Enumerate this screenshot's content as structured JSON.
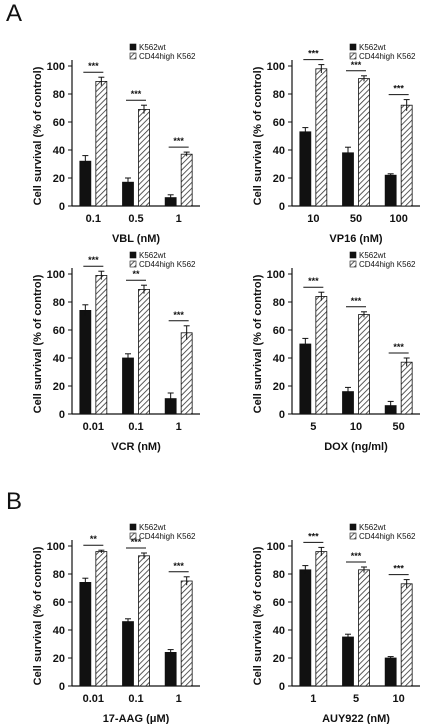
{
  "panel_labels": [
    "A",
    "B"
  ],
  "colors": {
    "wt": "#111111",
    "high_fill": "#ffffff",
    "hatch": "#333333",
    "axis": "#111111"
  },
  "chart_data": [
    {
      "type": "bar",
      "panel": "A",
      "categories": [
        "0.1",
        "0.5",
        "1"
      ],
      "xlabel": "VBL (nM)",
      "ylabel": "Cell survival (% of control)",
      "ylim": [
        0,
        100
      ],
      "yticks": [
        0,
        20,
        40,
        60,
        80,
        100
      ],
      "grid": false,
      "legend": "top-right",
      "series": [
        {
          "name": "K562wt",
          "values": [
            32,
            17,
            6
          ],
          "errors": [
            4,
            3,
            2
          ]
        },
        {
          "name": "CD44high K562",
          "values": [
            89,
            69,
            37
          ],
          "errors": [
            3,
            3,
            1.5
          ]
        }
      ],
      "significance": [
        "***",
        "***",
        "***"
      ]
    },
    {
      "type": "bar",
      "panel": "A",
      "categories": [
        "10",
        "50",
        "100"
      ],
      "xlabel": "VP16 (nM)",
      "ylabel": "Cell survival (% of control)",
      "ylim": [
        0,
        100
      ],
      "yticks": [
        0,
        20,
        40,
        60,
        80,
        100
      ],
      "grid": false,
      "legend": "top-right",
      "series": [
        {
          "name": "K562wt",
          "values": [
            53,
            38,
            22
          ],
          "errors": [
            3,
            4,
            1
          ]
        },
        {
          "name": "CD44high K562",
          "values": [
            98,
            91,
            72
          ],
          "errors": [
            3,
            2,
            4
          ]
        }
      ],
      "significance": [
        "***",
        "***",
        "***"
      ]
    },
    {
      "type": "bar",
      "panel": "A",
      "categories": [
        "0.01",
        "0.1",
        "1"
      ],
      "xlabel": "VCR (nM)",
      "ylabel": "Cell survival (% of control)",
      "ylim": [
        0,
        100
      ],
      "yticks": [
        0,
        20,
        40,
        60,
        80,
        100
      ],
      "grid": false,
      "legend": "top-right",
      "series": [
        {
          "name": "K562wt",
          "values": [
            74,
            40,
            11
          ],
          "errors": [
            4,
            3,
            4
          ]
        },
        {
          "name": "CD44high K562",
          "values": [
            99,
            89,
            58
          ],
          "errors": [
            3,
            3,
            5
          ]
        }
      ],
      "significance": [
        "***",
        "**",
        "***"
      ]
    },
    {
      "type": "bar",
      "panel": "A",
      "categories": [
        "5",
        "10",
        "50"
      ],
      "xlabel": "DOX (ng/ml)",
      "ylabel": "Cell survival (% of control)",
      "ylim": [
        0,
        100
      ],
      "yticks": [
        0,
        20,
        40,
        60,
        80,
        100
      ],
      "grid": false,
      "legend": "top-right",
      "series": [
        {
          "name": "K562wt",
          "values": [
            50,
            16,
            6
          ],
          "errors": [
            4,
            3,
            3
          ]
        },
        {
          "name": "CD44high K562",
          "values": [
            84,
            71,
            37
          ],
          "errors": [
            3,
            2,
            3
          ]
        }
      ],
      "significance": [
        "***",
        "***",
        "***"
      ]
    },
    {
      "type": "bar",
      "panel": "B",
      "categories": [
        "0.01",
        "0.1",
        "1"
      ],
      "xlabel": "17-AAG (μM)",
      "ylabel": "Cell survival (% of control)",
      "ylim": [
        0,
        100
      ],
      "yticks": [
        0,
        20,
        40,
        60,
        80,
        100
      ],
      "grid": false,
      "legend": "top-right",
      "series": [
        {
          "name": "K562wt",
          "values": [
            74,
            46,
            24
          ],
          "errors": [
            3,
            2,
            2
          ]
        },
        {
          "name": "CD44high K562",
          "values": [
            96,
            93,
            75
          ],
          "errors": [
            1,
            2,
            3
          ]
        }
      ],
      "significance": [
        "**",
        "***",
        "***"
      ]
    },
    {
      "type": "bar",
      "panel": "B",
      "categories": [
        "1",
        "5",
        "10"
      ],
      "xlabel": "AUY922 (nM)",
      "ylabel": "Cell survival (% of control)",
      "ylim": [
        0,
        100
      ],
      "yticks": [
        0,
        20,
        40,
        60,
        80,
        100
      ],
      "grid": false,
      "legend": "top-right",
      "series": [
        {
          "name": "K562wt",
          "values": [
            83,
            35,
            20
          ],
          "errors": [
            3,
            2,
            1
          ]
        },
        {
          "name": "CD44high K562",
          "values": [
            96,
            83,
            73
          ],
          "errors": [
            3,
            2,
            3
          ]
        }
      ],
      "significance": [
        "***",
        "***",
        "***"
      ]
    }
  ]
}
